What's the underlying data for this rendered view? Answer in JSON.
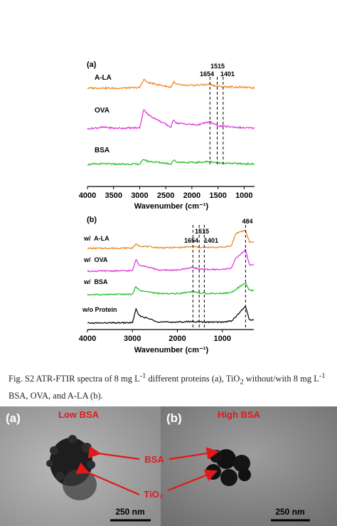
{
  "colors": {
    "a_la": "#f08a24",
    "ova": "#e03ce0",
    "bsa": "#2fbf2f",
    "none": "#111111",
    "annot": "#e01a1a"
  },
  "chart_data": [
    {
      "type": "line",
      "panel_label": "(a)",
      "xlabel": "Wavenumber (cm⁻¹)",
      "xlim": [
        4000,
        800
      ],
      "xticks": [
        "4000",
        "3500",
        "3000",
        "2500",
        "2000",
        "1500",
        "1000"
      ],
      "y_axis": "none",
      "series": [
        {
          "name": "A-LA",
          "points": [
            [
              4000,
              0.0
            ],
            [
              3750,
              0.01
            ],
            [
              3500,
              0.0
            ],
            [
              3000,
              0.02
            ],
            [
              2920,
              0.28
            ],
            [
              2850,
              0.18
            ],
            [
              2400,
              0.03
            ],
            [
              2350,
              0.2
            ],
            [
              2300,
              0.12
            ],
            [
              2100,
              0.08
            ],
            [
              1900,
              0.1
            ],
            [
              1654,
              0.12
            ],
            [
              1515,
              0.06
            ],
            [
              1401,
              0.05
            ],
            [
              1000,
              0.03
            ],
            [
              800,
              0.01
            ]
          ]
        },
        {
          "name": "OVA",
          "points": [
            [
              4000,
              0.0
            ],
            [
              3700,
              0.05
            ],
            [
              3500,
              0.02
            ],
            [
              3000,
              0.03
            ],
            [
              2920,
              0.62
            ],
            [
              2850,
              0.45
            ],
            [
              2400,
              0.05
            ],
            [
              2350,
              0.3
            ],
            [
              2300,
              0.18
            ],
            [
              2100,
              0.15
            ],
            [
              1900,
              0.12
            ],
            [
              1654,
              0.22
            ],
            [
              1515,
              0.1
            ],
            [
              1401,
              0.08
            ],
            [
              1000,
              0.03
            ],
            [
              800,
              0.02
            ]
          ]
        },
        {
          "name": "BSA",
          "points": [
            [
              4000,
              0.0
            ],
            [
              3700,
              0.02
            ],
            [
              3500,
              0.01
            ],
            [
              3000,
              0.01
            ],
            [
              2920,
              0.16
            ],
            [
              2850,
              0.1
            ],
            [
              2400,
              0.02
            ],
            [
              2350,
              0.14
            ],
            [
              2300,
              0.08
            ],
            [
              2100,
              0.06
            ],
            [
              1900,
              0.06
            ],
            [
              1654,
              0.09
            ],
            [
              1515,
              0.05
            ],
            [
              1401,
              0.04
            ],
            [
              1000,
              0.02
            ],
            [
              800,
              0.01
            ]
          ]
        }
      ],
      "annotations": [
        "1654",
        "1515",
        "1401"
      ]
    },
    {
      "type": "line",
      "panel_label": "(b)",
      "xlabel": "Wavenumber (cm⁻¹)",
      "xlim": [
        4000,
        300
      ],
      "xticks": [
        "4000",
        "3000",
        "2000",
        "1000"
      ],
      "y_axis": "none",
      "series": [
        {
          "name": "w/  A-LA",
          "points": [
            [
              4000,
              0.0
            ],
            [
              3000,
              0.02
            ],
            [
              2920,
              0.2
            ],
            [
              2850,
              0.12
            ],
            [
              2400,
              0.03
            ],
            [
              2000,
              0.04
            ],
            [
              1654,
              0.08
            ],
            [
              1515,
              0.05
            ],
            [
              1401,
              0.04
            ],
            [
              1000,
              0.06
            ],
            [
              800,
              0.12
            ],
            [
              700,
              0.7
            ],
            [
              484,
              0.85
            ],
            [
              400,
              0.3
            ]
          ]
        },
        {
          "name": "w/  OVA",
          "points": [
            [
              4000,
              0.0
            ],
            [
              3000,
              0.02
            ],
            [
              2920,
              0.55
            ],
            [
              2850,
              0.3
            ],
            [
              2400,
              0.05
            ],
            [
              2000,
              0.05
            ],
            [
              1654,
              0.18
            ],
            [
              1515,
              0.1
            ],
            [
              1401,
              0.08
            ],
            [
              1000,
              0.08
            ],
            [
              800,
              0.15
            ],
            [
              700,
              0.6
            ],
            [
              484,
              1.0
            ],
            [
              400,
              0.3
            ]
          ]
        },
        {
          "name": "w/  BSA",
          "points": [
            [
              4000,
              0.0
            ],
            [
              3000,
              0.02
            ],
            [
              2920,
              0.4
            ],
            [
              2850,
              0.2
            ],
            [
              2400,
              0.05
            ],
            [
              2000,
              0.05
            ],
            [
              1654,
              0.15
            ],
            [
              1515,
              0.08
            ],
            [
              1401,
              0.06
            ],
            [
              1000,
              0.06
            ],
            [
              800,
              0.1
            ],
            [
              700,
              0.25
            ],
            [
              484,
              0.55
            ],
            [
              400,
              0.2
            ]
          ]
        },
        {
          "name": "w/o Protein",
          "points": [
            [
              4000,
              0.0
            ],
            [
              3000,
              0.02
            ],
            [
              2920,
              0.65
            ],
            [
              2850,
              0.35
            ],
            [
              2400,
              0.05
            ],
            [
              2000,
              0.05
            ],
            [
              1654,
              0.08
            ],
            [
              1515,
              0.06
            ],
            [
              1401,
              0.05
            ],
            [
              1000,
              0.05
            ],
            [
              800,
              0.1
            ],
            [
              700,
              0.3
            ],
            [
              484,
              0.8
            ],
            [
              400,
              0.15
            ]
          ]
        }
      ],
      "annotations": [
        "1654",
        "1515",
        "1401",
        "484"
      ]
    }
  ],
  "caption_html": "Fig. S2 ATR-FTIR spectra of 8 mg L<sup>-1</sup> different proteins (a), TiO<sub>2</sub> without/with 8 mg L<sup>-1</sup> BSA, OVA, and A-LA (b).",
  "tem": {
    "panel_a": {
      "label": "(a)",
      "title": "Low BSA",
      "scale": "250 nm"
    },
    "panel_b": {
      "label": "(b)",
      "title": "High BSA",
      "scale": "250 nm"
    },
    "arrow_labels": {
      "bsa": "BSA",
      "tio2": "TiO₂"
    }
  }
}
